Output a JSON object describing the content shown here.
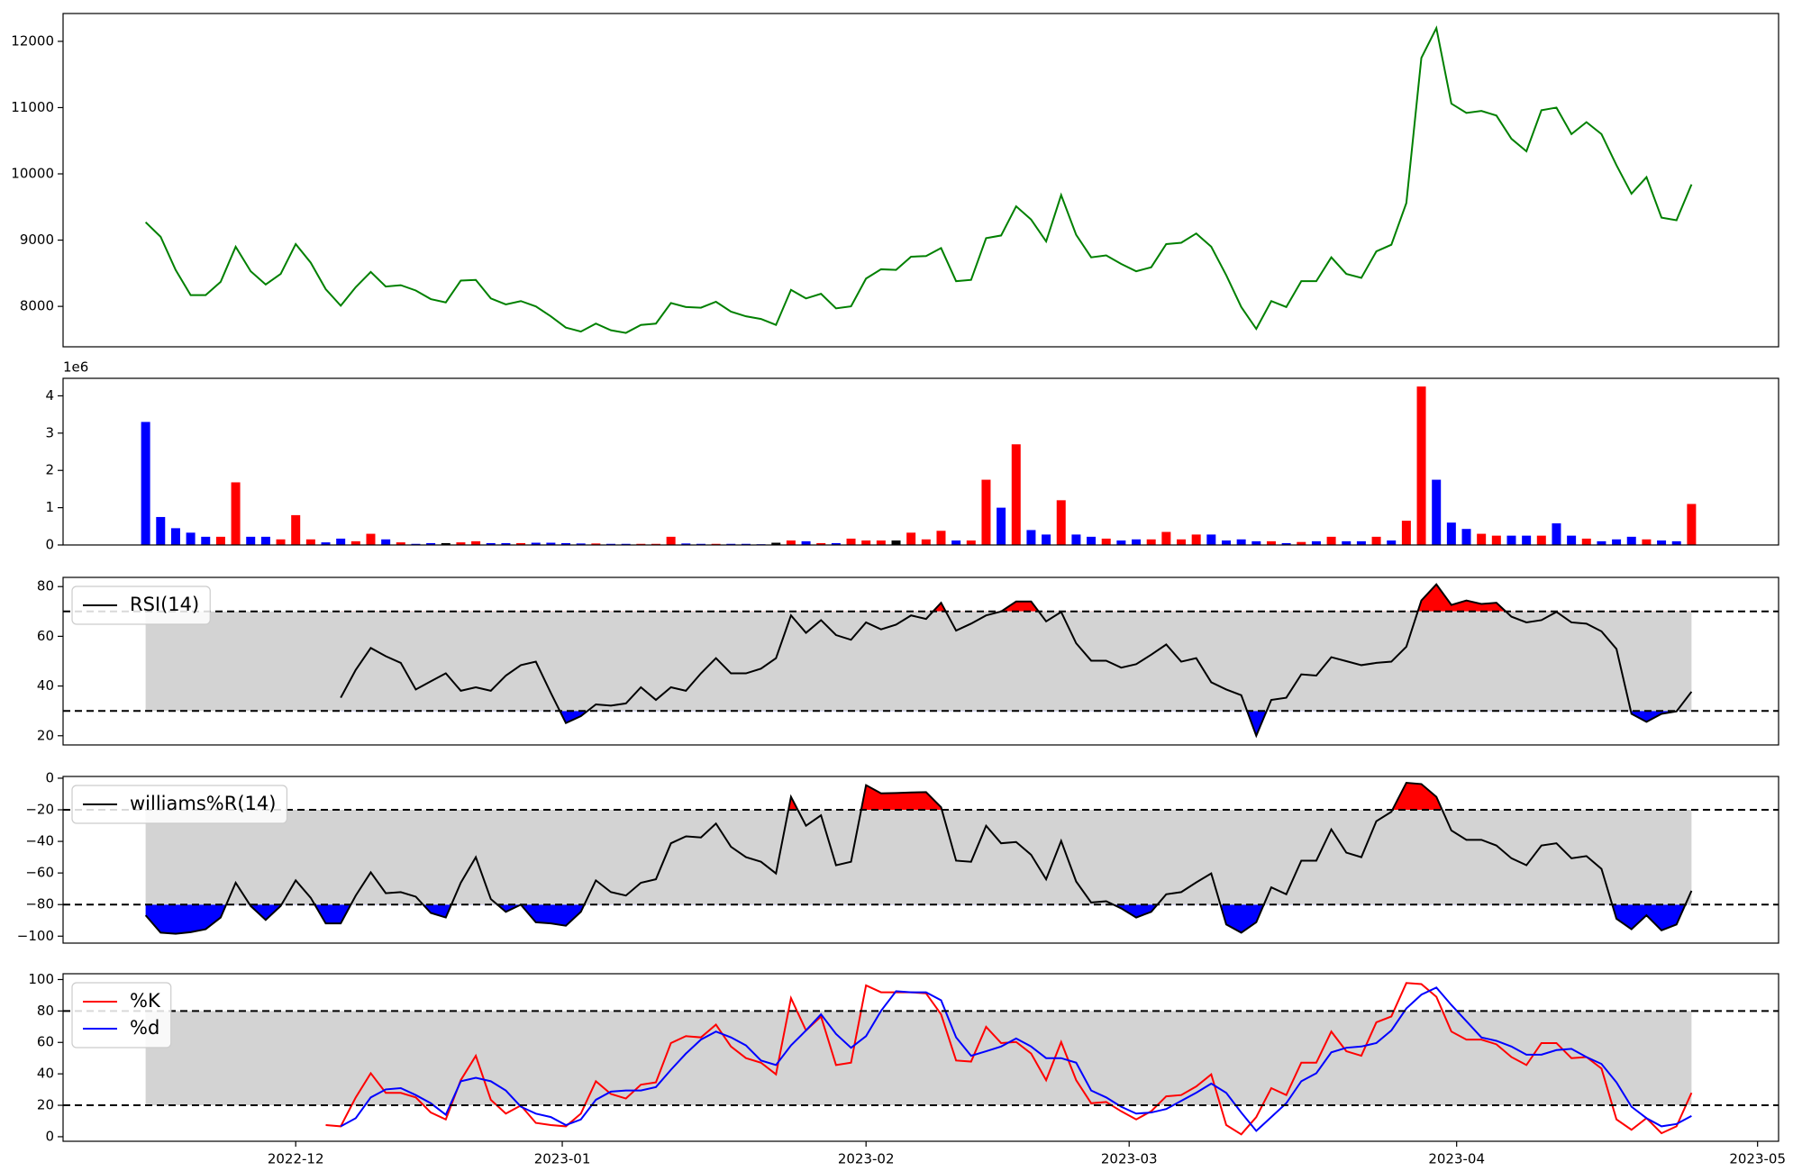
{
  "chart_data": [
    {
      "type": "line",
      "color": "green",
      "xlim": [
        -5.5,
        108.8
      ],
      "ylim": [
        7390,
        12420
      ],
      "yticks": [
        8000,
        9000,
        10000,
        11000,
        12000
      ],
      "values": [
        9270,
        9050,
        8550,
        8170,
        8170,
        8370,
        8900,
        8530,
        8330,
        8490,
        8940,
        8660,
        8260,
        8010,
        8290,
        8520,
        8300,
        8320,
        8240,
        8110,
        8060,
        8390,
        8400,
        8120,
        8030,
        8080,
        8000,
        7850,
        7680,
        7620,
        7740,
        7640,
        7600,
        7720,
        7740,
        8050,
        7990,
        7980,
        8070,
        7920,
        7850,
        7810,
        7720,
        8250,
        8120,
        8190,
        7970,
        8000,
        8420,
        8560,
        8550,
        8750,
        8760,
        8880,
        8380,
        8400,
        9030,
        9070,
        9510,
        9310,
        8980,
        9680,
        9080,
        8740,
        8770,
        8640,
        8530,
        8590,
        8940,
        8960,
        9100,
        8900,
        8470,
        7990,
        7660,
        8080,
        7990,
        8380,
        8380,
        8740,
        8490,
        8430,
        8830,
        8930,
        9560,
        11750,
        12200,
        11060,
        10920,
        10950,
        10880,
        10530,
        10340,
        10960,
        11000,
        10600,
        10780,
        10600,
        10130,
        9700,
        9950,
        9340,
        9300,
        9840
      ]
    },
    {
      "type": "bar",
      "offset_label": "1e6",
      "xlim": [
        -5.5,
        108.8
      ],
      "ylim": [
        0,
        4.47
      ],
      "yticks": [
        0,
        1,
        2,
        3,
        4
      ],
      "values": [
        3.3,
        0.75,
        0.45,
        0.33,
        0.22,
        0.22,
        1.68,
        0.22,
        0.22,
        0.15,
        0.8,
        0.15,
        0.07,
        0.17,
        0.1,
        0.3,
        0.15,
        0.07,
        0.03,
        0.05,
        0.05,
        0.07,
        0.1,
        0.05,
        0.05,
        0.05,
        0.06,
        0.06,
        0.05,
        0.04,
        0.04,
        0.03,
        0.03,
        0.03,
        0.03,
        0.22,
        0.04,
        0.03,
        0.03,
        0.03,
        0.03,
        0.02,
        0.06,
        0.12,
        0.1,
        0.05,
        0.05,
        0.17,
        0.12,
        0.12,
        0.12,
        0.33,
        0.15,
        0.38,
        0.12,
        0.12,
        1.75,
        1.0,
        2.7,
        0.4,
        0.28,
        1.2,
        0.28,
        0.22,
        0.17,
        0.12,
        0.15,
        0.15,
        0.35,
        0.15,
        0.28,
        0.28,
        0.12,
        0.15,
        0.1,
        0.1,
        0.05,
        0.08,
        0.1,
        0.22,
        0.1,
        0.1,
        0.22,
        0.12,
        0.65,
        4.25,
        1.75,
        0.6,
        0.43,
        0.3,
        0.25,
        0.25,
        0.25,
        0.25,
        0.58,
        0.25,
        0.17,
        0.1,
        0.15,
        0.22,
        0.15,
        0.12,
        0.1,
        1.1
      ],
      "colors": [
        "blue",
        "blue",
        "blue",
        "blue",
        "blue",
        "red",
        "red",
        "blue",
        "blue",
        "red",
        "red",
        "red",
        "blue",
        "blue",
        "red",
        "red",
        "blue",
        "red",
        "blue",
        "blue",
        "black",
        "red",
        "red",
        "blue",
        "blue",
        "red",
        "blue",
        "blue",
        "blue",
        "blue",
        "red",
        "blue",
        "blue",
        "red",
        "red",
        "red",
        "blue",
        "blue",
        "red",
        "blue",
        "blue",
        "blue",
        "black",
        "red",
        "blue",
        "red",
        "blue",
        "red",
        "red",
        "red",
        "black",
        "red",
        "red",
        "red",
        "blue",
        "red",
        "red",
        "blue",
        "red",
        "blue",
        "blue",
        "red",
        "blue",
        "blue",
        "red",
        "blue",
        "blue",
        "red",
        "red",
        "red",
        "red",
        "blue",
        "blue",
        "blue",
        "blue",
        "red",
        "blue",
        "red",
        "blue",
        "red",
        "blue",
        "blue",
        "red",
        "blue",
        "red",
        "red",
        "blue",
        "blue",
        "blue",
        "red",
        "red",
        "blue",
        "blue",
        "red",
        "blue",
        "blue",
        "red",
        "blue",
        "blue",
        "blue",
        "red",
        "blue",
        "blue",
        "red"
      ]
    },
    {
      "type": "line",
      "legend": "upper left",
      "xlim": [
        -5.5,
        108.8
      ],
      "ylim": [
        16.3,
        83.7
      ],
      "yticks": [
        20,
        40,
        60,
        80
      ],
      "band": {
        "range": [
          30,
          70
        ],
        "color": "#d3d3d3"
      },
      "fill_above": "red",
      "fill_below": "blue",
      "series": [
        {
          "name": "RSI(14)",
          "color": "black",
          "values": [
            null,
            null,
            null,
            null,
            null,
            null,
            null,
            null,
            null,
            null,
            null,
            null,
            null,
            35.3,
            46.5,
            55.3,
            52,
            49.3,
            38.6,
            41.9,
            45.1,
            38.1,
            39.5,
            38.1,
            44.2,
            48.4,
            49.8,
            37.2,
            25.1,
            27.9,
            32.6,
            32.1,
            33,
            39.5,
            34.4,
            39.5,
            38.1,
            45.1,
            51.2,
            45.1,
            45.1,
            47,
            51.2,
            68.4,
            61.4,
            66.5,
            60.5,
            58.6,
            65.6,
            62.8,
            64.7,
            68.4,
            67,
            73.5,
            62.3,
            65.1,
            68.4,
            70,
            74,
            74,
            66,
            69.8,
            57.2,
            50.2,
            50.2,
            47.4,
            48.8,
            52.6,
            56.7,
            49.8,
            51.2,
            41.5,
            38.6,
            36.3,
            20,
            34.4,
            35.3,
            44.7,
            44.2,
            51.6,
            50,
            48.4,
            49.3,
            49.8,
            55.8,
            74.4,
            80.9,
            72.6,
            74.4,
            73,
            73.5,
            67.9,
            65.6,
            66.5,
            69.8,
            65.6,
            65.1,
            62,
            54.9,
            28.8,
            25.6,
            28.8,
            29.8,
            37.7
          ]
        }
      ]
    },
    {
      "type": "line",
      "legend": "upper left",
      "xlim": [
        -5.5,
        108.8
      ],
      "ylim": [
        -104.4,
        1.1
      ],
      "yticks": [
        {
          "value": -100,
          "label": "−100"
        },
        {
          "value": -80,
          "label": "−80"
        },
        {
          "value": -60,
          "label": "−60"
        },
        {
          "value": -40,
          "label": "−40"
        },
        {
          "value": -20,
          "label": "−20"
        },
        0
      ],
      "band": {
        "range": [
          -80,
          -20
        ],
        "color": "#d3d3d3"
      },
      "fill_above": "red",
      "fill_below": "blue",
      "series": [
        {
          "name": "williams%R(14)",
          "color": "black",
          "values": [
            -86.8,
            -97.8,
            -98.5,
            -97.5,
            -95.6,
            -88.2,
            -66.2,
            -80.9,
            -89.7,
            -80.9,
            -64.7,
            -75.7,
            -91.9,
            -91.9,
            -74.3,
            -59.6,
            -72.8,
            -72.1,
            -75,
            -85.3,
            -88.2,
            -66.2,
            -50,
            -76.5,
            -84.6,
            -80.1,
            -91.2,
            -91.9,
            -93.4,
            -84.6,
            -64.7,
            -72.1,
            -74.3,
            -66.2,
            -64,
            -41.2,
            -36.8,
            -37.5,
            -28.7,
            -43.4,
            -50,
            -52.9,
            -60.3,
            -11.8,
            -30.1,
            -23.5,
            -55.1,
            -52.9,
            -4.4,
            -9.6,
            -9.4,
            -9,
            -8.8,
            -18.4,
            -52.2,
            -52.9,
            -30.1,
            -41.2,
            -40.4,
            -48.5,
            -64,
            -39.7,
            -65.4,
            -78.7,
            -77.9,
            -82.4,
            -88.2,
            -84.6,
            -73.5,
            -72.1,
            -66,
            -60.3,
            -92.6,
            -97.8,
            -91.2,
            -69.1,
            -73.5,
            -52.2,
            -52.2,
            -32.4,
            -47.1,
            -50,
            -27.2,
            -21.3,
            -2.9,
            -3.7,
            -11.8,
            -33.1,
            -39,
            -39,
            -42.6,
            -50.7,
            -55.1,
            -42.6,
            -41.2,
            -50.7,
            -49.3,
            -57.4,
            -89,
            -95.6,
            -86.8,
            -96.3,
            -92.6,
            -71.3
          ]
        }
      ]
    },
    {
      "type": "line",
      "legend": "upper left",
      "xlim": [
        -5.5,
        108.8
      ],
      "ylim": [
        -2.9,
        103.7
      ],
      "yticks": [
        0,
        20,
        40,
        60,
        80,
        100
      ],
      "xticks": [
        {
          "value": 10,
          "label": "2022-12"
        },
        {
          "value": 27.76,
          "label": "2023-01"
        },
        {
          "value": 48,
          "label": "2023-02"
        },
        {
          "value": 65.53,
          "label": "2023-03"
        },
        {
          "value": 87.35,
          "label": "2023-04"
        },
        {
          "value": 107.4,
          "label": "2023-05"
        }
      ],
      "band": {
        "range": [
          20,
          80
        ],
        "color": "#d3d3d3"
      },
      "series": [
        {
          "name": "%K",
          "color": "red",
          "values": [
            null,
            null,
            null,
            null,
            null,
            null,
            null,
            null,
            null,
            null,
            null,
            null,
            7.4,
            6.6,
            25,
            40.4,
            27.9,
            27.9,
            25,
            15.4,
            11,
            36,
            51.5,
            23.5,
            14.7,
            19.9,
            8.8,
            7.4,
            6.6,
            14.7,
            35.3,
            27.2,
            24.3,
            33.1,
            34.6,
            59.6,
            64,
            63.2,
            71.3,
            57.4,
            50,
            47.1,
            39.7,
            88.2,
            67.6,
            76.5,
            45.6,
            47.1,
            96.3,
            91.9,
            91.9,
            91.9,
            91.2,
            77.9,
            48.5,
            47.8,
            69.9,
            59.6,
            60.3,
            52.9,
            36,
            60.3,
            36,
            21.3,
            22.1,
            16.2,
            11,
            16.2,
            25.7,
            26.5,
            32,
            39.7,
            7.4,
            1.5,
            12.5,
            30.9,
            26.5,
            47.1,
            47.1,
            66.9,
            54.4,
            51.5,
            72.8,
            76.5,
            97.8,
            97.1,
            89,
            66.9,
            61.8,
            61.8,
            58.8,
            50.7,
            45.6,
            59.6,
            59.6,
            50,
            50.7,
            43.4,
            11,
            4.4,
            11.8,
            2.2,
            6.6,
            27.9
          ]
        },
        {
          "name": "%d",
          "color": "blue",
          "values": [
            null,
            null,
            null,
            null,
            null,
            null,
            null,
            null,
            null,
            null,
            null,
            null,
            null,
            6.6,
            11.8,
            25,
            30.1,
            30.9,
            26.5,
            21.3,
            14,
            35.3,
            37.5,
            35.3,
            29.4,
            19.1,
            14.7,
            12.5,
            7.4,
            11,
            23.5,
            28.7,
            29.4,
            29.4,
            31.6,
            42.6,
            52.9,
            61.8,
            66.9,
            63.2,
            58.1,
            48.5,
            45.6,
            58.1,
            67.6,
            77.9,
            65.4,
            56.6,
            64,
            80.1,
            92.6,
            91.9,
            91.9,
            86.8,
            63.2,
            51.5,
            54.4,
            57.4,
            62.5,
            57.4,
            50,
            50,
            47.1,
            29.4,
            25,
            19.1,
            14.7,
            15.4,
            17.6,
            22.8,
            28,
            33.8,
            27.9,
            15.4,
            3.7,
            12.5,
            21.3,
            35.3,
            40.4,
            53.7,
            56.6,
            57.4,
            59.6,
            67.6,
            81.6,
            90.4,
            94.9,
            83.8,
            73.5,
            63.2,
            61,
            57.4,
            52.2,
            52.2,
            55.1,
            55.9,
            50.7,
            46.3,
            34.6,
            19.1,
            11.8,
            6.6,
            8.1,
            13.2
          ]
        }
      ]
    }
  ]
}
